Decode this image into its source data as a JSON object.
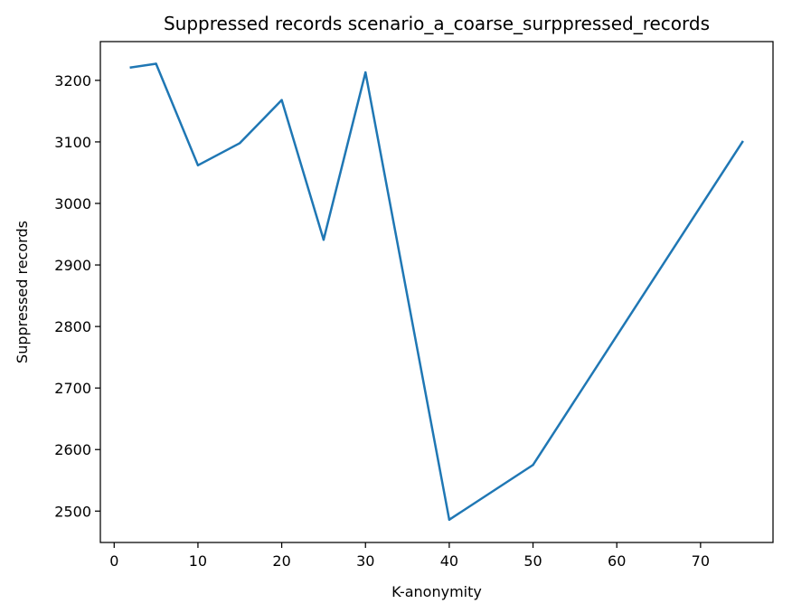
{
  "chart_data": {
    "type": "line",
    "title": "Suppressed records scenario_a_coarse_surppressed_records",
    "xlabel": "K-anonymity",
    "ylabel": "Suppressed records",
    "xlim": [
      -1.65,
      78.65
    ],
    "ylim": [
      2449,
      3263
    ],
    "xticks": [
      0,
      10,
      20,
      30,
      40,
      50,
      60,
      70
    ],
    "yticks": [
      2500,
      2600,
      2700,
      2800,
      2900,
      3000,
      3100,
      3200
    ],
    "grid": false,
    "series": [
      {
        "color": "#1f77b4",
        "x": [
          2,
          5,
          10,
          15,
          20,
          25,
          30,
          40,
          50,
          75
        ],
        "y": [
          3221,
          3227,
          3062,
          3098,
          3168,
          2941,
          3213,
          2486,
          2575,
          3100
        ]
      }
    ]
  }
}
